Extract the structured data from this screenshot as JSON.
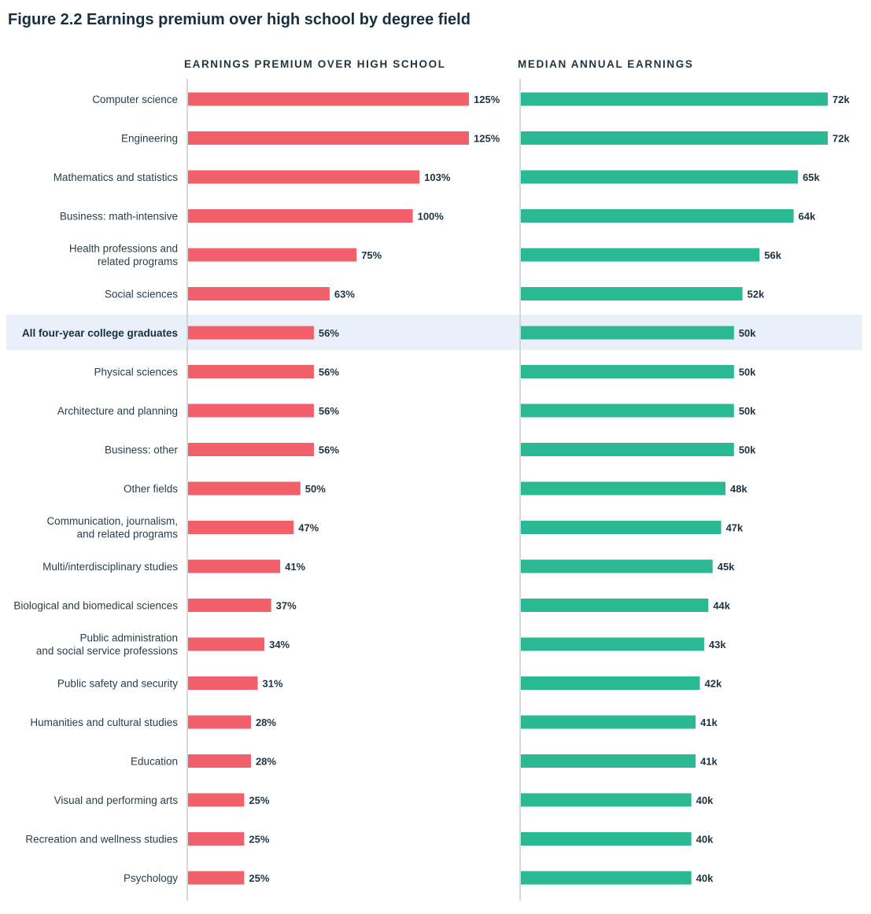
{
  "title": "Figure 2.2  Earnings premium over high school by degree field",
  "chart_data": {
    "type": "bar",
    "orientation": "horizontal",
    "categories": [
      [
        "Computer science"
      ],
      [
        "Engineering"
      ],
      [
        "Mathematics and statistics"
      ],
      [
        "Business: math-intensive"
      ],
      [
        "Health professions and",
        "related programs"
      ],
      [
        "Social sciences"
      ],
      [
        "All four-year college graduates"
      ],
      [
        "Physical sciences"
      ],
      [
        "Architecture and planning"
      ],
      [
        "Business: other"
      ],
      [
        "Other fields"
      ],
      [
        "Communication, journalism,",
        "and related programs"
      ],
      [
        "Multi/interdisciplinary studies"
      ],
      [
        "Biological and biomedical sciences"
      ],
      [
        "Public administration",
        "and social service professions"
      ],
      [
        "Public safety and security"
      ],
      [
        "Humanities and cultural studies"
      ],
      [
        "Education"
      ],
      [
        "Visual and performing arts"
      ],
      [
        "Recreation and wellness studies"
      ],
      [
        "Psychology"
      ]
    ],
    "highlight_index": 6,
    "panels": [
      {
        "title": "EARNINGS PREMIUM OVER HIGH SCHOOL",
        "color": "#f2616b",
        "xlim": [
          0,
          125
        ],
        "values": [
          125,
          125,
          103,
          100,
          75,
          63,
          56,
          56,
          56,
          56,
          50,
          47,
          41,
          37,
          34,
          31,
          28,
          28,
          25,
          25,
          25
        ],
        "labels": [
          "125%",
          "125%",
          "103%",
          "100%",
          "75%",
          "63%",
          "56%",
          "56%",
          "56%",
          "56%",
          "50%",
          "47%",
          "41%",
          "37%",
          "34%",
          "31%",
          "28%",
          "28%",
          "25%",
          "25%",
          "25%"
        ]
      },
      {
        "title": "MEDIAN ANNUAL EARNINGS",
        "color": "#2bb993",
        "xlim": [
          0,
          72
        ],
        "values": [
          72,
          72,
          65,
          64,
          56,
          52,
          50,
          50,
          50,
          50,
          48,
          47,
          45,
          44,
          43,
          42,
          41,
          41,
          40,
          40,
          40
        ],
        "labels": [
          "72k",
          "72k",
          "65k",
          "64k",
          "56k",
          "52k",
          "50k",
          "50k",
          "50k",
          "50k",
          "48k",
          "47k",
          "45k",
          "44k",
          "43k",
          "42k",
          "41k",
          "41k",
          "40k",
          "40k",
          "40k"
        ]
      }
    ],
    "highlight_color": "#e9f0f9",
    "axis_line_color": "#c9ced3"
  }
}
